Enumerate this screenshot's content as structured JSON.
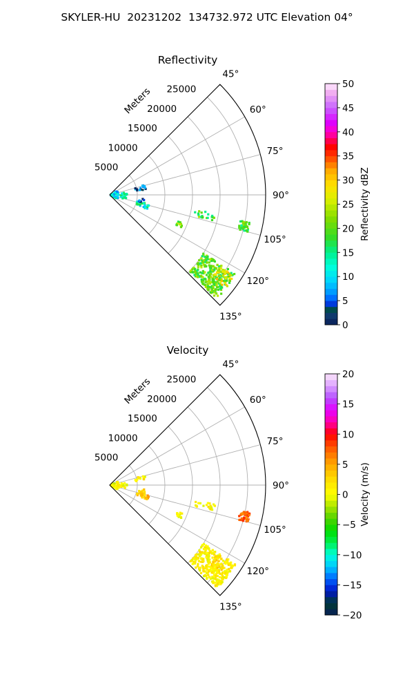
{
  "figure": {
    "title": "SKYLER-HU  20231202  134732.972 UTC Elevation 04°"
  },
  "chart_data": [
    {
      "type": "polar-sector-ppi",
      "title": "Reflectivity",
      "range_axis_label": "Meters",
      "range_ticks": [
        5000,
        10000,
        15000,
        20000,
        25000
      ],
      "range_tick_labels": [
        "5000",
        "10000",
        "15000",
        "20000",
        "25000"
      ],
      "azimuth_range_deg": [
        45,
        135
      ],
      "azimuth_ticks": [
        45,
        60,
        75,
        90,
        105,
        120,
        135
      ],
      "azimuth_tick_labels": [
        "45°",
        "60°",
        "75°",
        "90°",
        "105°",
        "120°",
        "135°"
      ],
      "grid": true,
      "colorbar": {
        "label": "Reflectivity dBZ",
        "min": 0,
        "max": 50,
        "ticks": [
          0,
          5,
          10,
          15,
          20,
          25,
          30,
          35,
          40,
          45,
          50
        ],
        "tick_labels": [
          "0",
          "5",
          "10",
          "15",
          "20",
          "25",
          "30",
          "35",
          "40",
          "45",
          "50"
        ]
      },
      "echo_cells": [
        {
          "az": 128,
          "range": 23500,
          "value": 20,
          "az_spread": 6,
          "range_spread": 3500,
          "count": 260
        },
        {
          "az": 126,
          "range": 25000,
          "value": 27,
          "az_spread": 3,
          "range_spread": 1800,
          "count": 40
        },
        {
          "az": 103,
          "range": 25000,
          "value": 19,
          "az_spread": 2,
          "range_spread": 900,
          "count": 40
        },
        {
          "az": 102,
          "range": 17500,
          "value": 19,
          "az_spread": 2,
          "range_spread": 2000,
          "count": 20
        },
        {
          "az": 113,
          "range": 13500,
          "value": 20,
          "az_spread": 2,
          "range_spread": 900,
          "count": 12
        },
        {
          "az": 107,
          "range": 6200,
          "value": 13,
          "az_spread": 4,
          "range_spread": 1200,
          "count": 24
        },
        {
          "az": 100,
          "range": 6000,
          "value": 3,
          "az_spread": 3,
          "range_spread": 600,
          "count": 6
        },
        {
          "az": 78,
          "range": 5700,
          "value": 5,
          "az_spread": 4,
          "range_spread": 1000,
          "count": 14
        },
        {
          "az": 90,
          "range": 900,
          "value": 10,
          "az_spread": 30,
          "range_spread": 700,
          "count": 40
        },
        {
          "az": 93,
          "range": 2300,
          "value": 13,
          "az_spread": 12,
          "range_spread": 900,
          "count": 22
        }
      ]
    },
    {
      "type": "polar-sector-ppi",
      "title": "Velocity",
      "range_axis_label": "Meters",
      "range_ticks": [
        5000,
        10000,
        15000,
        20000,
        25000
      ],
      "range_tick_labels": [
        "5000",
        "10000",
        "15000",
        "20000",
        "25000"
      ],
      "azimuth_range_deg": [
        45,
        135
      ],
      "azimuth_ticks": [
        45,
        60,
        75,
        90,
        105,
        120,
        135
      ],
      "azimuth_tick_labels": [
        "45°",
        "60°",
        "75°",
        "90°",
        "105°",
        "120°",
        "135°"
      ],
      "grid": true,
      "colorbar": {
        "label": "Velocity (m/s)",
        "min": -20,
        "max": 20,
        "ticks": [
          -20,
          -15,
          -10,
          -5,
          0,
          5,
          10,
          15,
          20
        ],
        "tick_labels": [
          "−20",
          "−15",
          "−10",
          "−5",
          "0",
          "5",
          "10",
          "15",
          "20"
        ]
      },
      "echo_cells": [
        {
          "az": 128,
          "range": 23500,
          "value": 1,
          "az_spread": 6,
          "range_spread": 3500,
          "count": 260
        },
        {
          "az": 126,
          "range": 25000,
          "value": 2,
          "az_spread": 3,
          "range_spread": 1800,
          "count": 40
        },
        {
          "az": 103,
          "range": 25000,
          "value": 7,
          "az_spread": 2,
          "range_spread": 900,
          "count": 40
        },
        {
          "az": 102,
          "range": 17500,
          "value": 1,
          "az_spread": 2,
          "range_spread": 2000,
          "count": 20
        },
        {
          "az": 113,
          "range": 13500,
          "value": 1,
          "az_spread": 2,
          "range_spread": 900,
          "count": 12
        },
        {
          "az": 107,
          "range": 6200,
          "value": 4,
          "az_spread": 4,
          "range_spread": 1200,
          "count": 24
        },
        {
          "az": 100,
          "range": 6000,
          "value": 2,
          "az_spread": 3,
          "range_spread": 600,
          "count": 6
        },
        {
          "az": 78,
          "range": 5700,
          "value": 1,
          "az_spread": 4,
          "range_spread": 1000,
          "count": 14
        },
        {
          "az": 90,
          "range": 900,
          "value": 0,
          "az_spread": 30,
          "range_spread": 700,
          "count": 40
        },
        {
          "az": 93,
          "range": 2300,
          "value": 1,
          "az_spread": 12,
          "range_spread": 900,
          "count": 22
        }
      ]
    }
  ]
}
